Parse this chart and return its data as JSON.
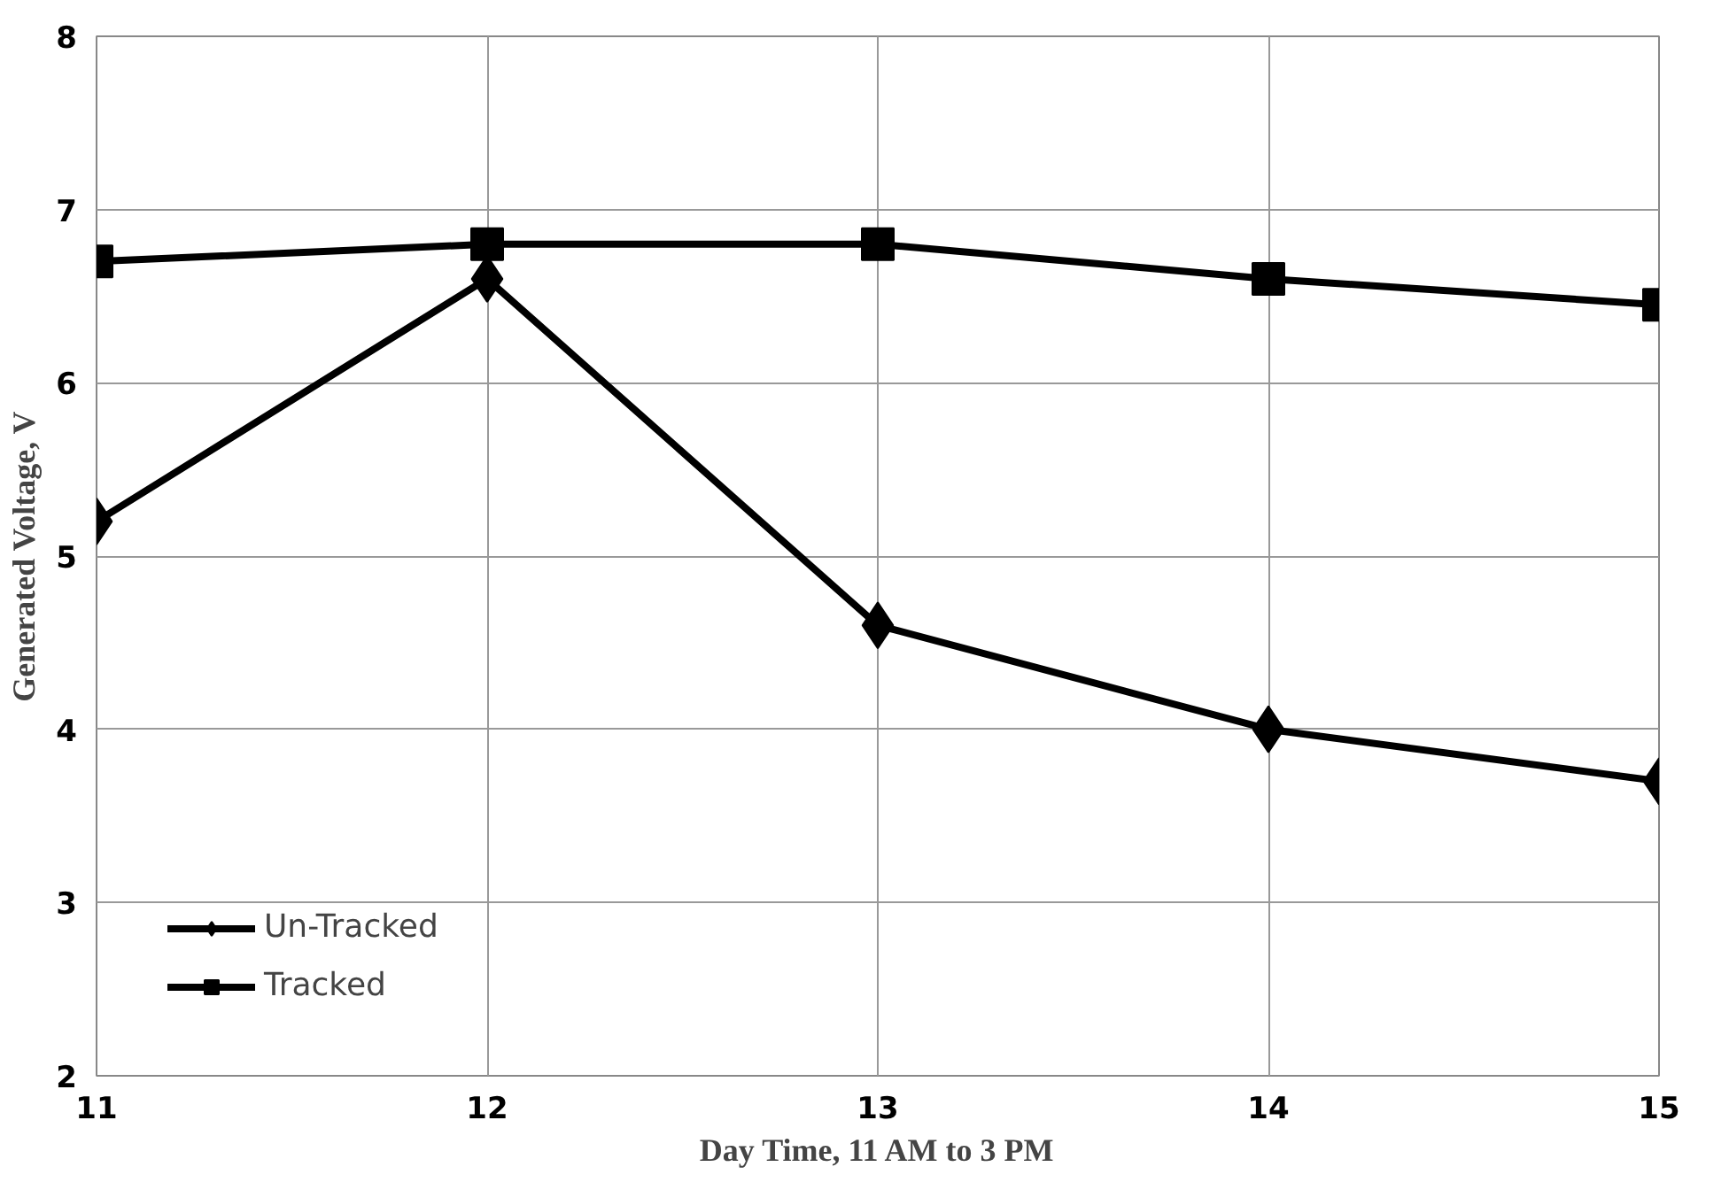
{
  "chart_data": {
    "type": "line",
    "xlabel": "Day Time, 11 AM to 3 PM",
    "ylabel": "Generated Voltage, V",
    "x": [
      11,
      12,
      13,
      14,
      15
    ],
    "series": [
      {
        "name": "Un-Tracked",
        "color": "#000000",
        "marker": "diamond",
        "values": [
          5.2,
          6.6,
          4.6,
          4.0,
          3.7
        ]
      },
      {
        "name": "Tracked",
        "color": "#000000",
        "marker": "square",
        "values": [
          6.7,
          6.8,
          6.8,
          6.6,
          6.45
        ]
      }
    ],
    "xlim": [
      11,
      15
    ],
    "xticks": [
      11,
      12,
      13,
      14,
      15
    ],
    "ylim": [
      2,
      8
    ],
    "yticks": [
      2,
      3,
      4,
      5,
      6,
      7,
      8
    ],
    "grid": true,
    "legend": "bottom left",
    "line_style": "solid"
  }
}
